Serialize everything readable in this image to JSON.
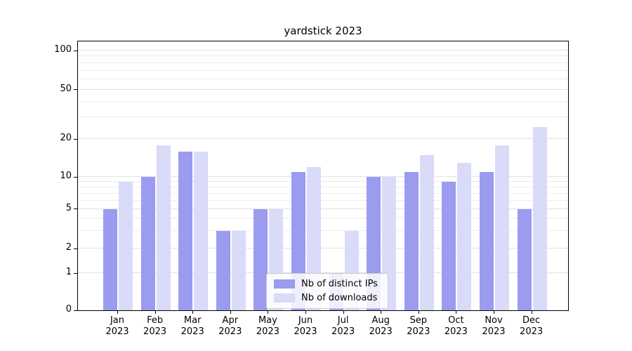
{
  "title": "yardstick 2023",
  "legend": {
    "items": [
      {
        "label": "Nb of distinct IPs",
        "color": "#9b9bef"
      },
      {
        "label": "Nb of downloads",
        "color": "#dadaf9"
      }
    ]
  },
  "axes": {
    "y_tick_labels": [
      "0",
      "1",
      "2",
      "5",
      "10",
      "20",
      "50",
      "100"
    ],
    "x_months": [
      "Jan",
      "Feb",
      "Mar",
      "Apr",
      "May",
      "Jun",
      "Jul",
      "Aug",
      "Sep",
      "Oct",
      "Nov",
      "Dec"
    ],
    "x_year": "2023"
  },
  "chart_data": {
    "type": "bar",
    "title": "yardstick 2023",
    "scale": "symlog",
    "grid": true,
    "legend_position": "lower center (inside plot)",
    "categories": [
      "Jan 2023",
      "Feb 2023",
      "Mar 2023",
      "Apr 2023",
      "May 2023",
      "Jun 2023",
      "Jul 2023",
      "Aug 2023",
      "Sep 2023",
      "Oct 2023",
      "Nov 2023",
      "Dec 2023"
    ],
    "series": [
      {
        "name": "Nb of distinct IPs",
        "color": "#9b9bef",
        "values": [
          5,
          10,
          16,
          3,
          5,
          11,
          1,
          10,
          11,
          9,
          11,
          5
        ]
      },
      {
        "name": "Nb of downloads",
        "color": "#dadaf9",
        "values": [
          9,
          18,
          16,
          3,
          5,
          12,
          3,
          10,
          15,
          13,
          18,
          25
        ]
      }
    ],
    "y_ticks": [
      0,
      1,
      2,
      5,
      10,
      20,
      50,
      100
    ],
    "ylim": [
      0,
      100
    ]
  }
}
